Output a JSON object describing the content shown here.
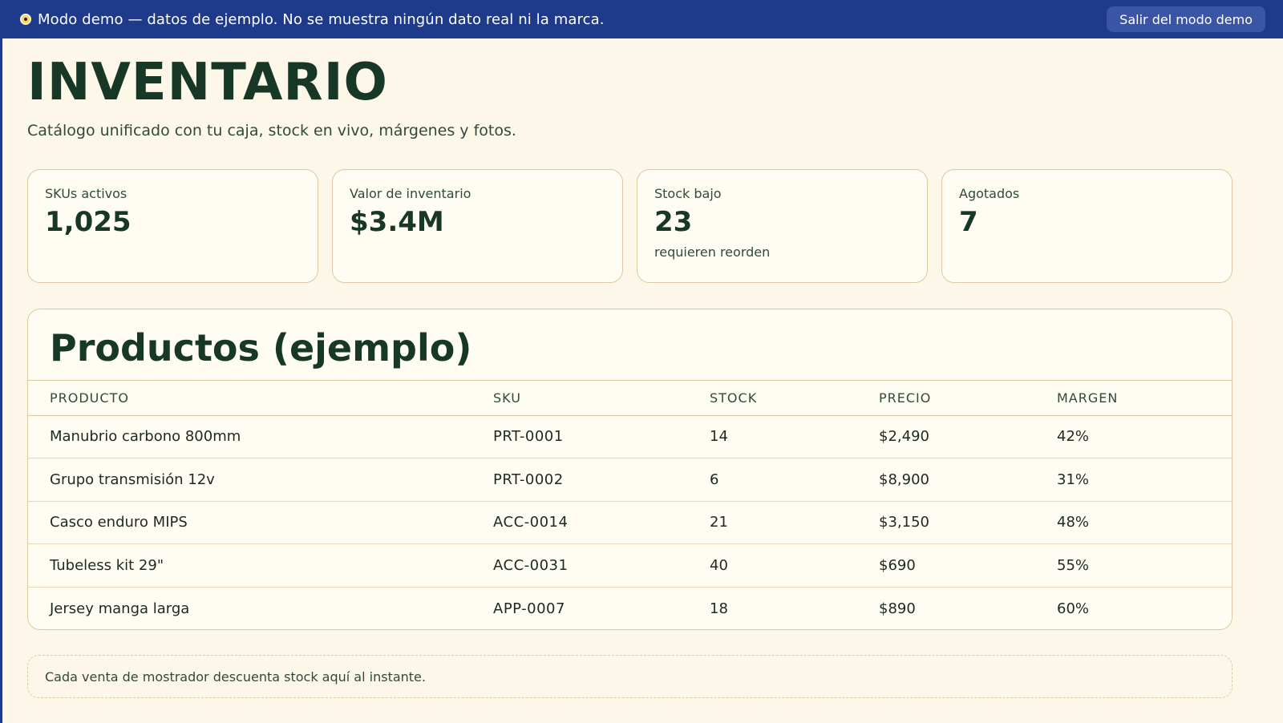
{
  "banner": {
    "text": "Modo demo — datos de ejemplo. No se muestra ningún dato real ni la marca.",
    "exit_label": "Salir del modo demo",
    "icon": "eye-icon"
  },
  "header": {
    "title": "INVENTARIO",
    "subtitle": "Catálogo unificado con tu caja, stock en vivo, márgenes y fotos."
  },
  "stats": [
    {
      "label": "SKUs activos",
      "value": "1,025",
      "note": ""
    },
    {
      "label": "Valor de inventario",
      "value": "$3.4M",
      "note": ""
    },
    {
      "label": "Stock bajo",
      "value": "23",
      "note": "requieren reorden"
    },
    {
      "label": "Agotados",
      "value": "7",
      "note": ""
    }
  ],
  "products": {
    "title": "Productos (ejemplo)",
    "columns": [
      "PRODUCTO",
      "SKU",
      "STOCK",
      "PRECIO",
      "MARGEN"
    ],
    "rows": [
      {
        "name": "Manubrio carbono 800mm",
        "sku": "PRT-0001",
        "stock": "14",
        "price": "$2,490",
        "margin": "42%"
      },
      {
        "name": "Grupo transmisión 12v",
        "sku": "PRT-0002",
        "stock": "6",
        "price": "$8,900",
        "margin": "31%"
      },
      {
        "name": "Casco enduro MIPS",
        "sku": "ACC-0014",
        "stock": "21",
        "price": "$3,150",
        "margin": "48%"
      },
      {
        "name": "Tubeless kit 29\"",
        "sku": "ACC-0031",
        "stock": "40",
        "price": "$690",
        "margin": "55%"
      },
      {
        "name": "Jersey manga larga",
        "sku": "APP-0007",
        "stock": "18",
        "price": "$890",
        "margin": "60%"
      }
    ]
  },
  "footer": {
    "note": "Cada venta de mostrador descuenta stock aquí al instante."
  },
  "colors": {
    "banner": "#1e3a8a",
    "background": "#fdf7ea",
    "accent_text": "#173826",
    "card_border": "#dcc9a3"
  }
}
